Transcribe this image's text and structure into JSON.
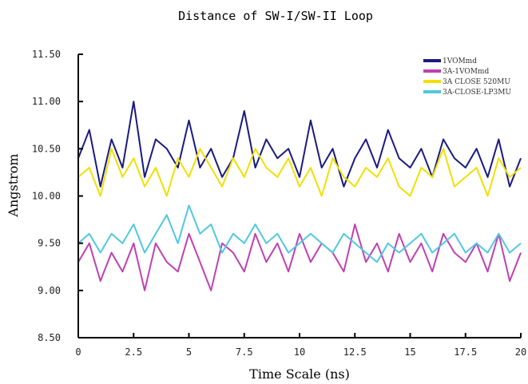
{
  "chart_data": {
    "type": "line",
    "title": "Distance of SW-I/SW-II Loop",
    "xlabel": "Time Scale (ns)",
    "ylabel": "Angstrom",
    "xlim": [
      0,
      20
    ],
    "ylim": [
      8.5,
      11.5
    ],
    "x_ticks": [
      "0",
      "2.5",
      "5",
      "7.5",
      "10",
      "12.5",
      "15",
      "17.5",
      "20"
    ],
    "y_ticks": [
      "8.50",
      "9.00",
      "9.50",
      "10.00",
      "10.50",
      "11.00",
      "11.50"
    ],
    "legend_position": "top-right",
    "x": [
      0,
      0.5,
      1,
      1.5,
      2,
      2.5,
      3,
      3.5,
      4,
      4.5,
      5,
      5.5,
      6,
      6.5,
      7,
      7.5,
      8,
      8.5,
      9,
      9.5,
      10,
      10.5,
      11,
      11.5,
      12,
      12.5,
      13,
      13.5,
      14,
      14.5,
      15,
      15.5,
      16,
      16.5,
      17,
      17.5,
      18,
      18.5,
      19,
      19.5,
      20
    ],
    "series": [
      {
        "name": "1VOMmd",
        "color": "#1a1a80",
        "values": [
          10.4,
          10.7,
          10.1,
          10.6,
          10.3,
          11.0,
          10.2,
          10.6,
          10.5,
          10.3,
          10.8,
          10.3,
          10.5,
          10.2,
          10.4,
          10.9,
          10.3,
          10.6,
          10.4,
          10.5,
          10.2,
          10.8,
          10.3,
          10.5,
          10.1,
          10.4,
          10.6,
          10.3,
          10.7,
          10.4,
          10.3,
          10.5,
          10.2,
          10.6,
          10.4,
          10.3,
          10.5,
          10.2,
          10.6,
          10.1,
          10.4
        ]
      },
      {
        "name": "3A-1VOMmd",
        "color": "#c040b0",
        "values": [
          9.3,
          9.5,
          9.1,
          9.4,
          9.2,
          9.5,
          9.0,
          9.5,
          9.3,
          9.2,
          9.6,
          9.3,
          9.0,
          9.5,
          9.4,
          9.2,
          9.6,
          9.3,
          9.5,
          9.2,
          9.6,
          9.3,
          9.5,
          9.4,
          9.2,
          9.7,
          9.3,
          9.5,
          9.2,
          9.6,
          9.3,
          9.5,
          9.2,
          9.6,
          9.4,
          9.3,
          9.5,
          9.2,
          9.6,
          9.1,
          9.4
        ]
      },
      {
        "name": "3A CLOSE 520MU",
        "color": "#f0e000",
        "values": [
          10.2,
          10.3,
          10.0,
          10.5,
          10.2,
          10.4,
          10.1,
          10.3,
          10.0,
          10.4,
          10.2,
          10.5,
          10.3,
          10.1,
          10.4,
          10.2,
          10.5,
          10.3,
          10.2,
          10.4,
          10.1,
          10.3,
          10.0,
          10.4,
          10.2,
          10.1,
          10.3,
          10.2,
          10.4,
          10.1,
          10.0,
          10.3,
          10.2,
          10.5,
          10.1,
          10.2,
          10.3,
          10.0,
          10.4,
          10.2,
          10.3
        ]
      },
      {
        "name": "3A-CLOSE-LP3MU",
        "color": "#50c8e0",
        "values": [
          9.5,
          9.6,
          9.4,
          9.6,
          9.5,
          9.7,
          9.4,
          9.6,
          9.8,
          9.5,
          9.9,
          9.6,
          9.7,
          9.4,
          9.6,
          9.5,
          9.7,
          9.5,
          9.6,
          9.4,
          9.5,
          9.6,
          9.5,
          9.4,
          9.6,
          9.5,
          9.4,
          9.3,
          9.5,
          9.4,
          9.5,
          9.6,
          9.4,
          9.5,
          9.6,
          9.4,
          9.5,
          9.4,
          9.6,
          9.4,
          9.5
        ]
      }
    ]
  }
}
